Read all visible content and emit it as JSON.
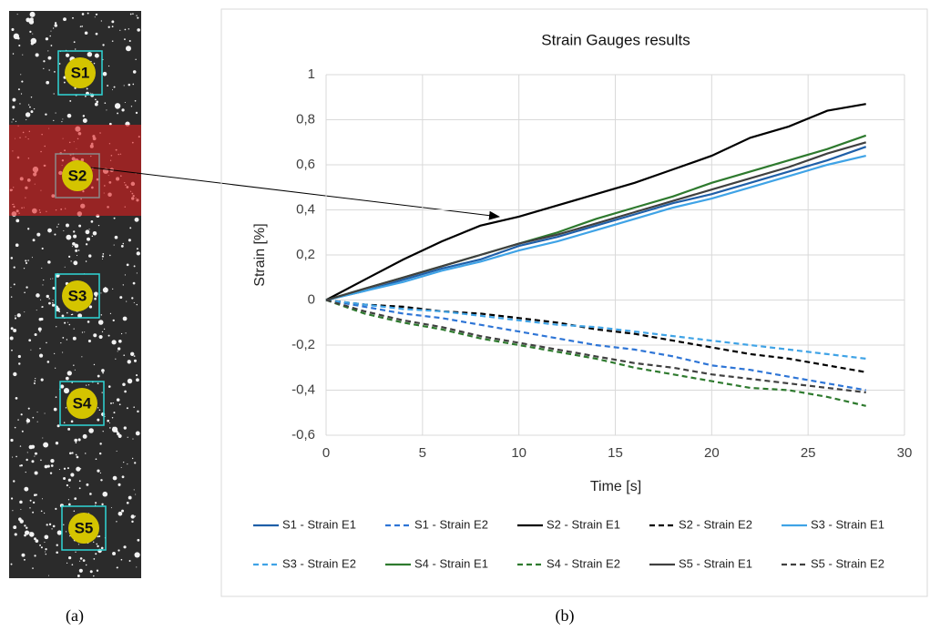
{
  "panel_labels": [
    "(a)",
    "(b)"
  ],
  "specimen_labels": [
    "S1",
    "S2",
    "S3",
    "S4",
    "S5"
  ],
  "chart_data": {
    "type": "line",
    "title": "Strain Gauges results",
    "x_label": "Time [s]",
    "y_label": "Strain [%]",
    "x": [
      0,
      2,
      4,
      6,
      8,
      10,
      12,
      14,
      16,
      18,
      20,
      22,
      24,
      26,
      28
    ],
    "xlim": [
      0,
      30
    ],
    "xticks": [
      0,
      5,
      10,
      15,
      20,
      25,
      30
    ],
    "ylim": [
      -0.6,
      1
    ],
    "yticks": [
      {
        "value": -0.6,
        "label": "-0,6"
      },
      {
        "value": -0.4,
        "label": "-0,4"
      },
      {
        "value": -0.2,
        "label": "-0,2"
      },
      0,
      {
        "value": 0.2,
        "label": "0,2"
      },
      {
        "value": 0.4,
        "label": "0,4"
      },
      {
        "value": 0.6,
        "label": "0,6"
      },
      {
        "value": 0.8,
        "label": "0,8"
      },
      1
    ],
    "grid": true,
    "legend": "bottom",
    "series": [
      {
        "name": "S1 - Strain E1",
        "color": "#1f5fa8",
        "dash": false,
        "values": [
          0,
          0.04,
          0.09,
          0.14,
          0.18,
          0.24,
          0.28,
          0.33,
          0.38,
          0.43,
          0.47,
          0.52,
          0.57,
          0.62,
          0.68
        ]
      },
      {
        "name": "S1 - Strain E2",
        "color": "#2e75d6",
        "dash": true,
        "values": [
          0,
          -0.03,
          -0.06,
          -0.08,
          -0.11,
          -0.14,
          -0.17,
          -0.2,
          -0.22,
          -0.25,
          -0.29,
          -0.31,
          -0.34,
          -0.37,
          -0.4
        ]
      },
      {
        "name": "S2 - Strain E1",
        "color": "#000000",
        "dash": false,
        "values": [
          0,
          0.09,
          0.18,
          0.26,
          0.33,
          0.37,
          0.42,
          0.47,
          0.52,
          0.58,
          0.64,
          0.72,
          0.77,
          0.84,
          0.87
        ]
      },
      {
        "name": "S2 - Strain E2",
        "color": "#000000",
        "dash": true,
        "values": [
          0,
          -0.02,
          -0.03,
          -0.05,
          -0.06,
          -0.08,
          -0.1,
          -0.13,
          -0.15,
          -0.18,
          -0.21,
          -0.24,
          -0.26,
          -0.29,
          -0.32
        ]
      },
      {
        "name": "S3 - Strain E1",
        "color": "#3fa3e6",
        "dash": false,
        "values": [
          0,
          0.04,
          0.08,
          0.13,
          0.17,
          0.22,
          0.26,
          0.31,
          0.36,
          0.41,
          0.45,
          0.5,
          0.55,
          0.6,
          0.64
        ]
      },
      {
        "name": "S3 - Strain E2",
        "color": "#3fa3e6",
        "dash": true,
        "values": [
          0,
          -0.02,
          -0.04,
          -0.05,
          -0.07,
          -0.09,
          -0.11,
          -0.12,
          -0.14,
          -0.16,
          -0.18,
          -0.2,
          -0.22,
          -0.24,
          -0.26
        ]
      },
      {
        "name": "S4 - Strain E1",
        "color": "#2e7a2e",
        "dash": false,
        "values": [
          0,
          0.05,
          0.1,
          0.15,
          0.2,
          0.25,
          0.3,
          0.36,
          0.41,
          0.46,
          0.52,
          0.57,
          0.62,
          0.67,
          0.73
        ]
      },
      {
        "name": "S4 - Strain E2",
        "color": "#2e7a2e",
        "dash": true,
        "values": [
          0,
          -0.06,
          -0.1,
          -0.13,
          -0.17,
          -0.2,
          -0.23,
          -0.26,
          -0.3,
          -0.33,
          -0.36,
          -0.39,
          -0.4,
          -0.43,
          -0.47
        ]
      },
      {
        "name": "S5 - Strain E1",
        "color": "#404040",
        "dash": false,
        "values": [
          0,
          0.05,
          0.1,
          0.15,
          0.2,
          0.25,
          0.29,
          0.34,
          0.39,
          0.44,
          0.49,
          0.54,
          0.59,
          0.65,
          0.7
        ]
      },
      {
        "name": "S5 - Strain E2",
        "color": "#404040",
        "dash": true,
        "values": [
          0,
          -0.05,
          -0.09,
          -0.12,
          -0.16,
          -0.19,
          -0.22,
          -0.25,
          -0.28,
          -0.3,
          -0.33,
          -0.35,
          -0.37,
          -0.39,
          -0.41
        ]
      }
    ]
  }
}
